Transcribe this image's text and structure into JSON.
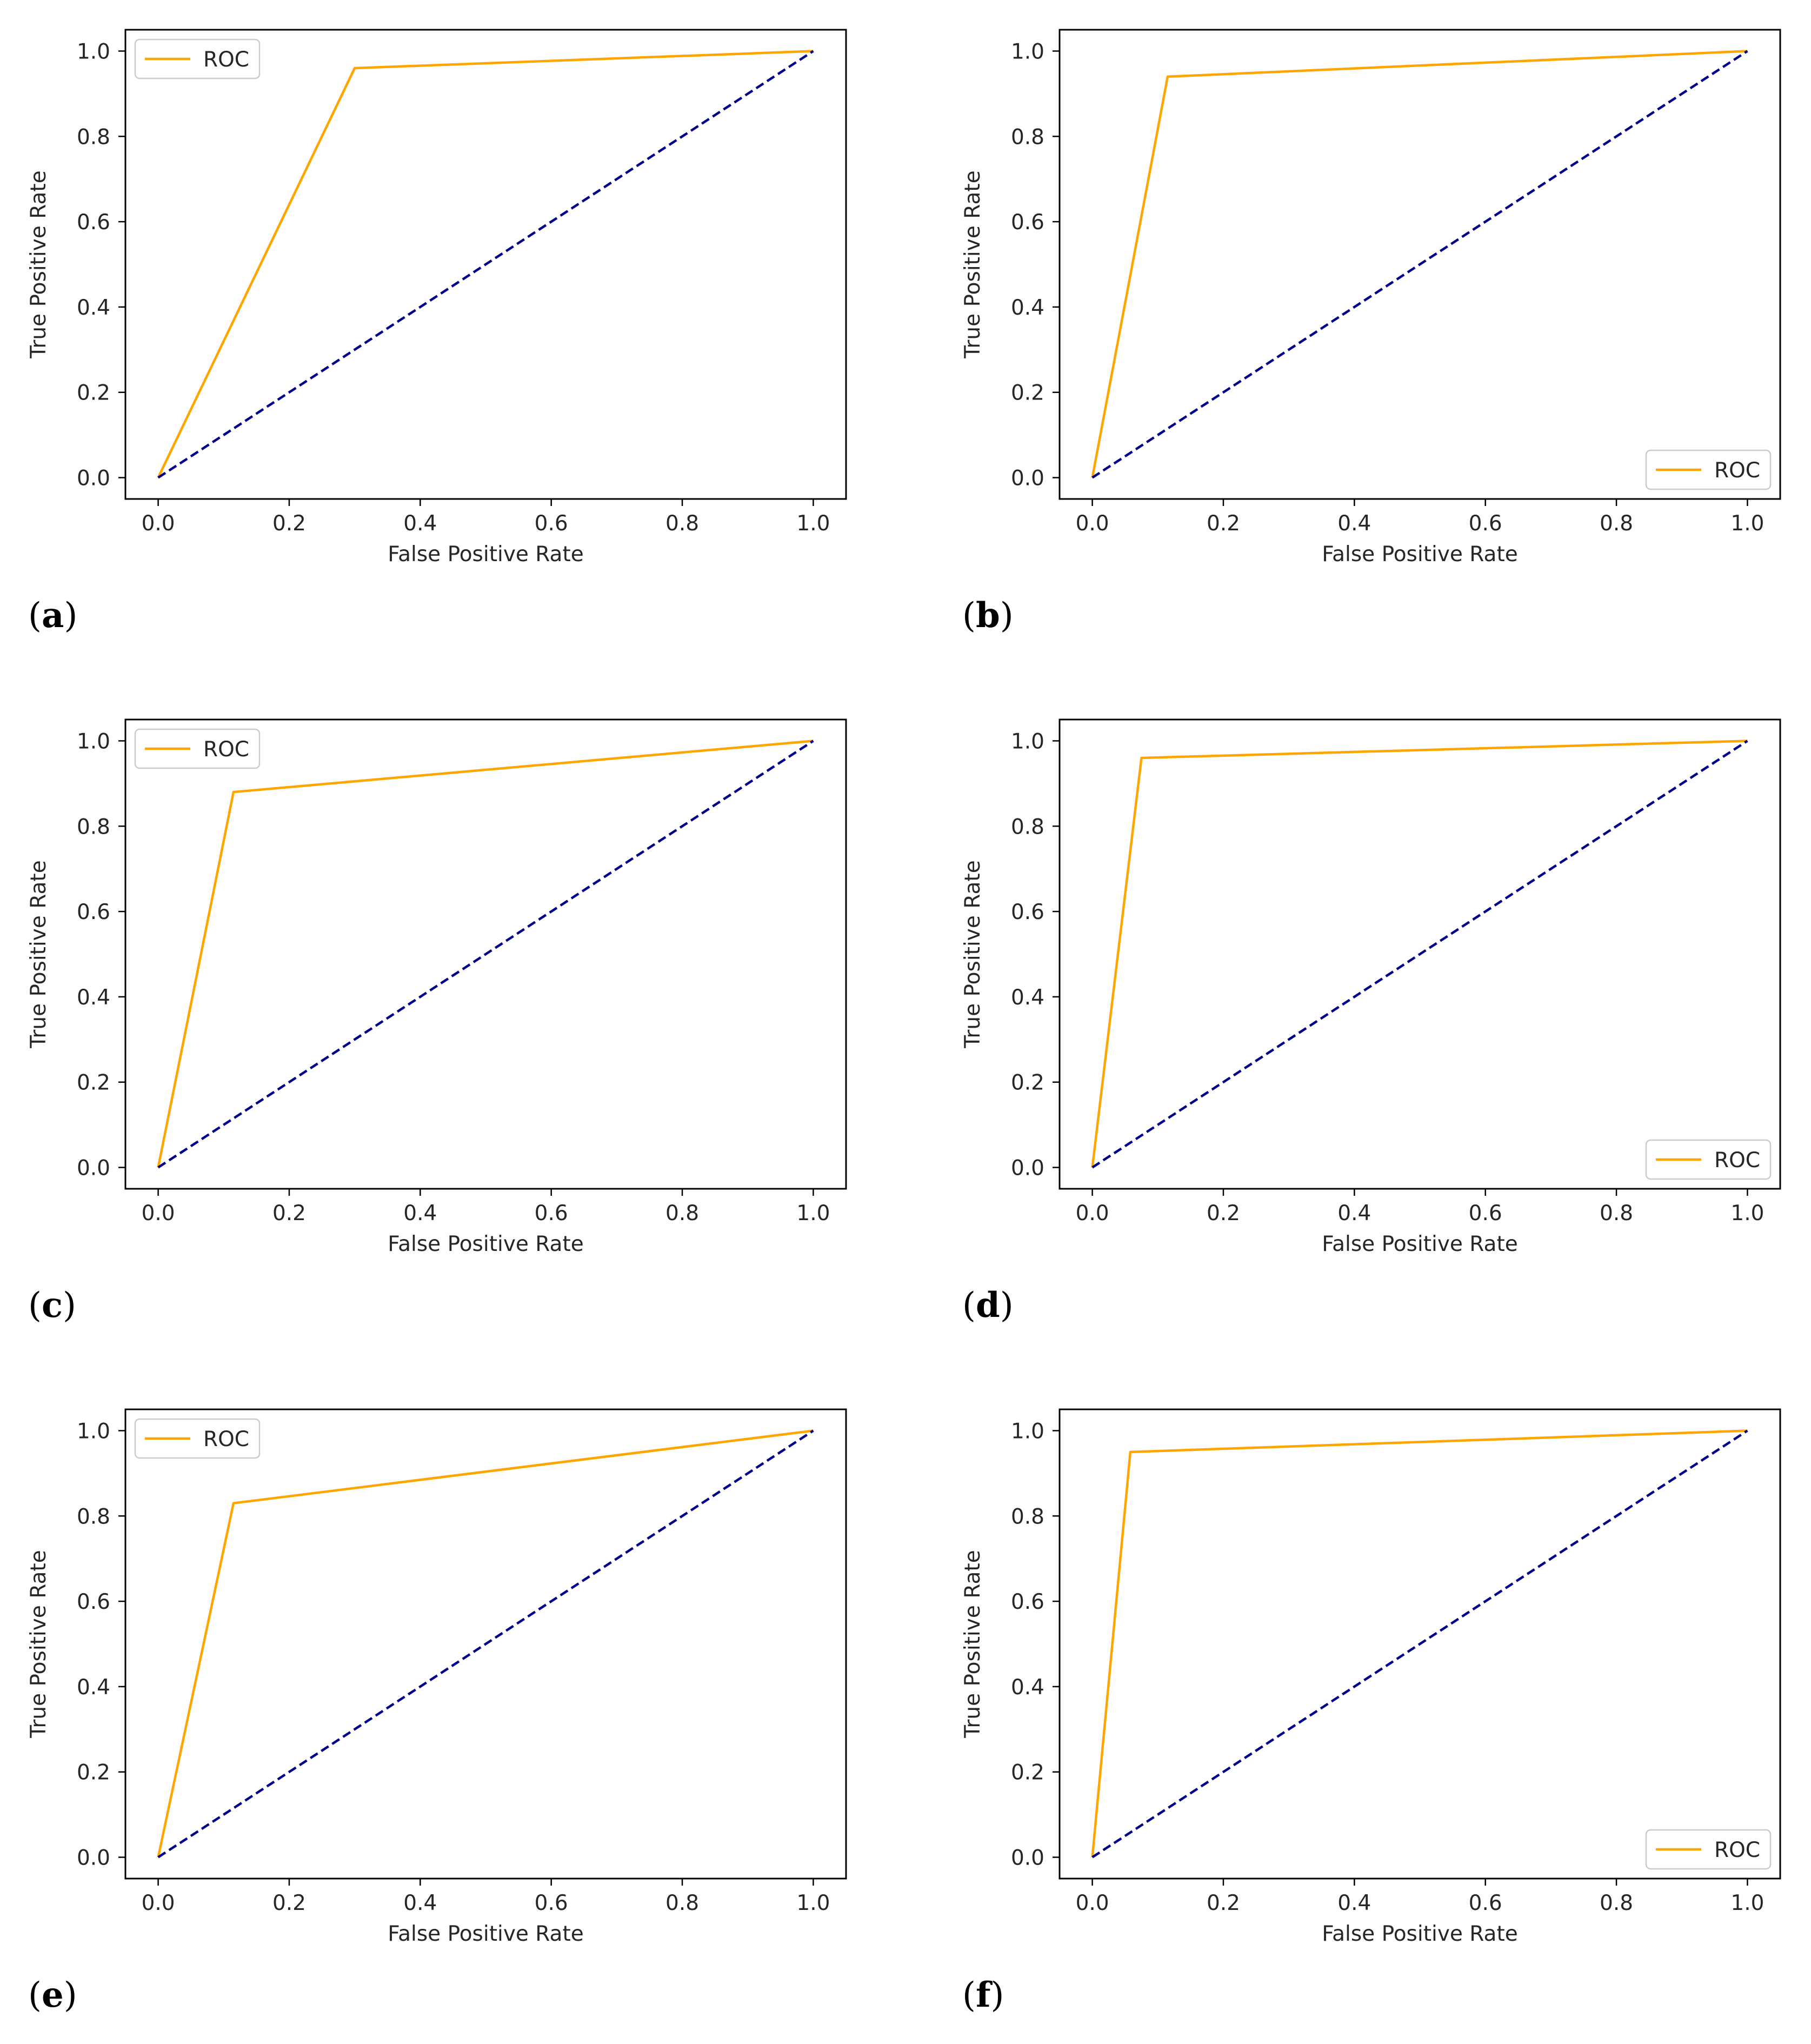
{
  "chart_data": [
    {
      "type": "line",
      "panel": "a",
      "xlabel": "False Positive Rate",
      "ylabel": "True Positive Rate",
      "xlim": [
        -0.05,
        1.05
      ],
      "ylim": [
        -0.05,
        1.05
      ],
      "xticks": [
        "0.0",
        "0.2",
        "0.4",
        "0.6",
        "0.8",
        "1.0"
      ],
      "yticks": [
        "0.0",
        "0.2",
        "0.4",
        "0.6",
        "0.8",
        "1.0"
      ],
      "legend_position": "upper-left",
      "series": [
        {
          "name": "ROC",
          "color": "#FFA500",
          "style": "solid",
          "x": [
            0,
            0.3,
            1
          ],
          "y": [
            0,
            0.96,
            1
          ]
        },
        {
          "name": "",
          "color": "#00008B",
          "style": "dashed",
          "x": [
            0,
            1
          ],
          "y": [
            0,
            1
          ]
        }
      ]
    },
    {
      "type": "line",
      "panel": "b",
      "xlabel": "False Positive Rate",
      "ylabel": "True Positive Rate",
      "xlim": [
        -0.05,
        1.05
      ],
      "ylim": [
        -0.05,
        1.05
      ],
      "xticks": [
        "0.0",
        "0.2",
        "0.4",
        "0.6",
        "0.8",
        "1.0"
      ],
      "yticks": [
        "0.0",
        "0.2",
        "0.4",
        "0.6",
        "0.8",
        "1.0"
      ],
      "legend_position": "lower-right",
      "series": [
        {
          "name": "ROC",
          "color": "#FFA500",
          "style": "solid",
          "x": [
            0,
            0.115,
            1
          ],
          "y": [
            0,
            0.94,
            1
          ]
        },
        {
          "name": "",
          "color": "#00008B",
          "style": "dashed",
          "x": [
            0,
            1
          ],
          "y": [
            0,
            1
          ]
        }
      ]
    },
    {
      "type": "line",
      "panel": "c",
      "xlabel": "False Positive Rate",
      "ylabel": "True Positive Rate",
      "xlim": [
        -0.05,
        1.05
      ],
      "ylim": [
        -0.05,
        1.05
      ],
      "xticks": [
        "0.0",
        "0.2",
        "0.4",
        "0.6",
        "0.8",
        "1.0"
      ],
      "yticks": [
        "0.0",
        "0.2",
        "0.4",
        "0.6",
        "0.8",
        "1.0"
      ],
      "legend_position": "upper-left",
      "series": [
        {
          "name": "ROC",
          "color": "#FFA500",
          "style": "solid",
          "x": [
            0,
            0.115,
            1
          ],
          "y": [
            0,
            0.88,
            1
          ]
        },
        {
          "name": "",
          "color": "#00008B",
          "style": "dashed",
          "x": [
            0,
            1
          ],
          "y": [
            0,
            1
          ]
        }
      ]
    },
    {
      "type": "line",
      "panel": "d",
      "xlabel": "False Positive Rate",
      "ylabel": "True Positive Rate",
      "xlim": [
        -0.05,
        1.05
      ],
      "ylim": [
        -0.05,
        1.05
      ],
      "xticks": [
        "0.0",
        "0.2",
        "0.4",
        "0.6",
        "0.8",
        "1.0"
      ],
      "yticks": [
        "0.0",
        "0.2",
        "0.4",
        "0.6",
        "0.8",
        "1.0"
      ],
      "legend_position": "lower-right",
      "series": [
        {
          "name": "ROC",
          "color": "#FFA500",
          "style": "solid",
          "x": [
            0,
            0.075,
            1
          ],
          "y": [
            0,
            0.96,
            1
          ]
        },
        {
          "name": "",
          "color": "#00008B",
          "style": "dashed",
          "x": [
            0,
            1
          ],
          "y": [
            0,
            1
          ]
        }
      ]
    },
    {
      "type": "line",
      "panel": "e",
      "xlabel": "False Positive Rate",
      "ylabel": "True Positive Rate",
      "xlim": [
        -0.05,
        1.05
      ],
      "ylim": [
        -0.05,
        1.05
      ],
      "xticks": [
        "0.0",
        "0.2",
        "0.4",
        "0.6",
        "0.8",
        "1.0"
      ],
      "yticks": [
        "0.0",
        "0.2",
        "0.4",
        "0.6",
        "0.8",
        "1.0"
      ],
      "legend_position": "upper-left",
      "series": [
        {
          "name": "ROC",
          "color": "#FFA500",
          "style": "solid",
          "x": [
            0,
            0.115,
            1
          ],
          "y": [
            0,
            0.83,
            1
          ]
        },
        {
          "name": "",
          "color": "#00008B",
          "style": "dashed",
          "x": [
            0,
            1
          ],
          "y": [
            0,
            1
          ]
        }
      ]
    },
    {
      "type": "line",
      "panel": "f",
      "xlabel": "False Positive Rate",
      "ylabel": "True Positive Rate",
      "xlim": [
        -0.05,
        1.05
      ],
      "ylim": [
        -0.05,
        1.05
      ],
      "xticks": [
        "0.0",
        "0.2",
        "0.4",
        "0.6",
        "0.8",
        "1.0"
      ],
      "yticks": [
        "0.0",
        "0.2",
        "0.4",
        "0.6",
        "0.8",
        "1.0"
      ],
      "legend_position": "lower-right",
      "series": [
        {
          "name": "ROC",
          "color": "#FFA500",
          "style": "solid",
          "x": [
            0,
            0.058,
            1
          ],
          "y": [
            0,
            0.95,
            1
          ]
        },
        {
          "name": "",
          "color": "#00008B",
          "style": "dashed",
          "x": [
            0,
            1
          ],
          "y": [
            0,
            1
          ]
        }
      ]
    }
  ]
}
